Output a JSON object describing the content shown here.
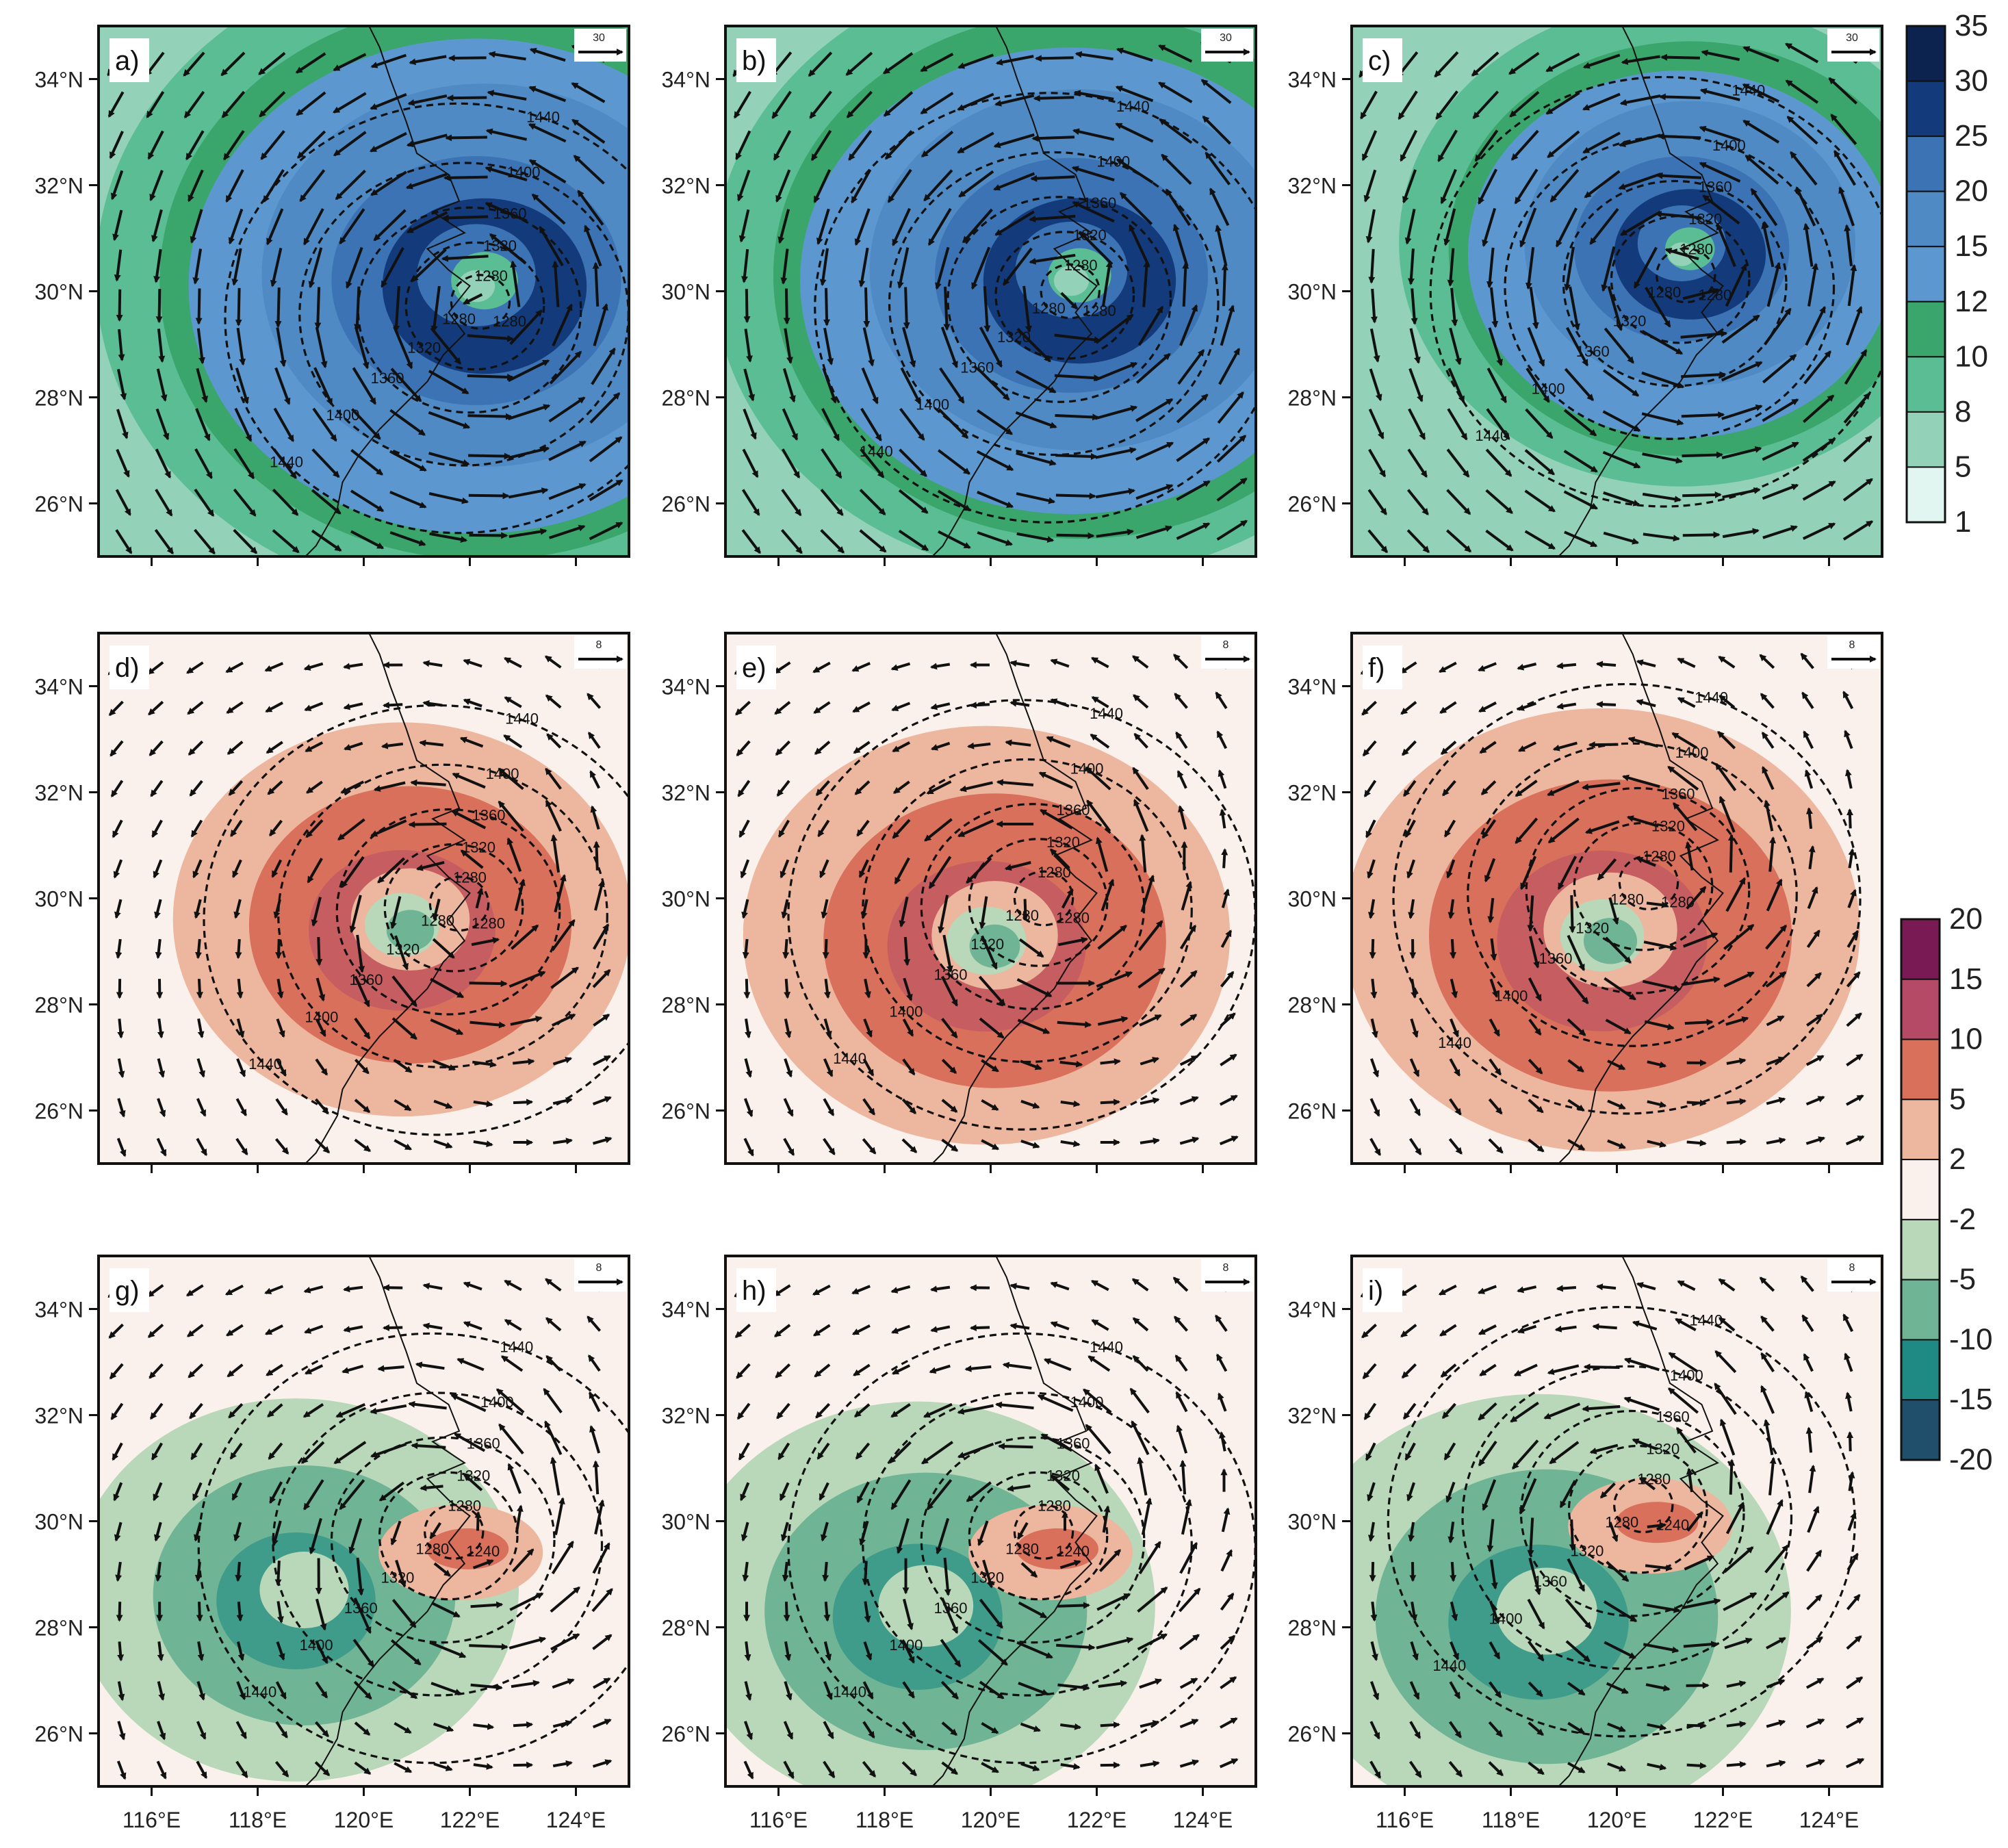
{
  "figure": {
    "panels": [
      {
        "letter": "a)",
        "row": 0,
        "col": 0,
        "ref_value": "30",
        "center": [
          122.2,
          29.8
        ],
        "var_center": [
          122.2,
          30.2
        ],
        "var_radius": 3.5,
        "eye": "green"
      },
      {
        "letter": "b)",
        "row": 0,
        "col": 1,
        "ref_value": "30",
        "center": [
          121.5,
          30.0
        ],
        "var_center": [
          121.6,
          30.3
        ],
        "var_radius": 3.3,
        "eye": "green"
      },
      {
        "letter": "c)",
        "row": 0,
        "col": 2,
        "ref_value": "30",
        "center": [
          121.3,
          30.3
        ],
        "var_center": [
          121.3,
          30.8
        ],
        "var_radius": 2.6,
        "eye": "green"
      },
      {
        "letter": "d)",
        "row": 1,
        "col": 0,
        "ref_value": "8",
        "center": [
          121.8,
          29.9
        ],
        "var_center": [
          120.8,
          29.5
        ],
        "var_radius": 3.2,
        "eye": "green"
      },
      {
        "letter": "e)",
        "row": 1,
        "col": 1,
        "ref_value": "8",
        "center": [
          121.0,
          30.0
        ],
        "var_center": [
          120.0,
          29.2
        ],
        "var_radius": 3.4,
        "eye": "green"
      },
      {
        "letter": "f)",
        "row": 1,
        "col": 2,
        "ref_value": "8",
        "center": [
          120.6,
          30.3
        ],
        "var_center": [
          119.8,
          29.3
        ],
        "var_radius": 3.6,
        "eye": "green"
      },
      {
        "letter": "g)",
        "row": 2,
        "col": 0,
        "ref_value": "8",
        "center": [
          121.7,
          29.8
        ],
        "var_center": [
          118.8,
          28.6
        ],
        "var_radius": 3.0,
        "eye": "pink"
      },
      {
        "letter": "h)",
        "row": 2,
        "col": 1,
        "ref_value": "8",
        "center": [
          121.0,
          29.8
        ],
        "var_center": [
          118.7,
          28.3
        ],
        "var_radius": 3.2,
        "eye": "pink"
      },
      {
        "letter": "i)",
        "row": 2,
        "col": 2,
        "ref_value": "8",
        "center": [
          120.5,
          30.3
        ],
        "var_center": [
          118.6,
          28.2
        ],
        "var_radius": 3.4,
        "eye": "pink"
      }
    ],
    "contour_levels": [
      1240,
      1280,
      1320,
      1360,
      1400,
      1440
    ],
    "contour_labels": [
      "1240",
      "1280",
      "1320",
      "1360",
      "1400",
      "1440"
    ],
    "lon_range": [
      115,
      125
    ],
    "lat_range": [
      25,
      35
    ],
    "lon_ticks": [
      "116°E",
      "118°E",
      "120°E",
      "122°E",
      "124°E"
    ],
    "lat_ticks": [
      "34°N",
      "32°N",
      "30°N",
      "28°N",
      "26°N"
    ],
    "lon_tick_values": [
      116,
      118,
      120,
      122,
      124
    ],
    "lat_tick_values": [
      34,
      32,
      30,
      28,
      26
    ]
  },
  "colorbar_wind": {
    "labels": [
      "35",
      "30",
      "25",
      "20",
      "15",
      "12",
      "10",
      "8",
      "5",
      "1"
    ],
    "colors": [
      "#0c2350",
      "#133a7a",
      "#3c73b4",
      "#4f8ac4",
      "#5c98cf",
      "#3aa66b",
      "#5bbd93",
      "#93d1b8",
      "#e2f6f1"
    ]
  },
  "colorbar_diff": {
    "labels": [
      "20",
      "15",
      "10",
      "5",
      "2",
      "-2",
      "-5",
      "-10",
      "-15",
      "-20"
    ],
    "colors": [
      "#7a1a55",
      "#b44a66",
      "#d8705b",
      "#edb69e",
      "#fbf1ec",
      "#b8d8b9",
      "#6fb494",
      "#1f8a84",
      "#1f4f6a"
    ]
  }
}
